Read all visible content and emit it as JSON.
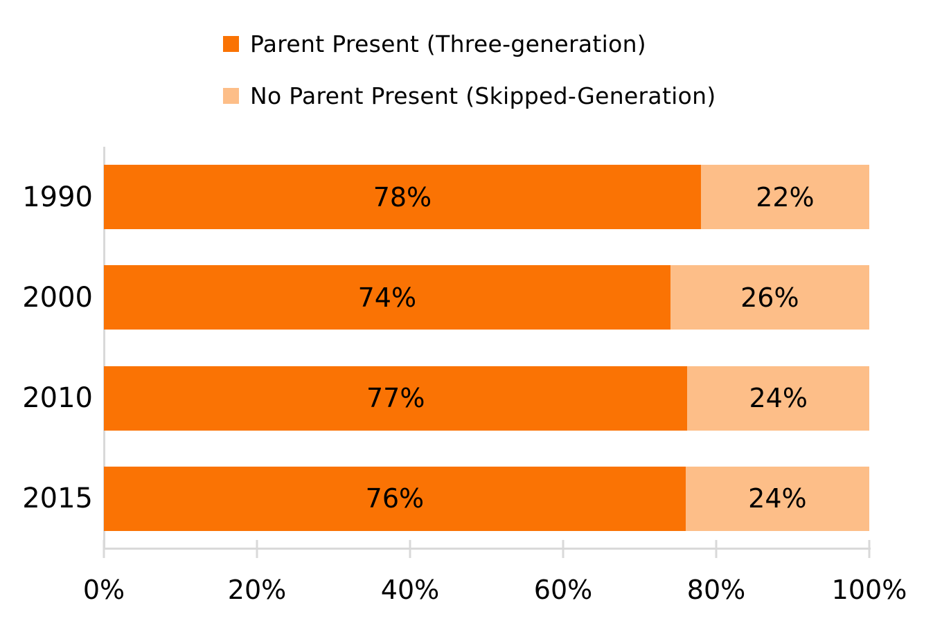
{
  "chart_data": {
    "type": "bar",
    "orientation": "horizontal",
    "stacked": true,
    "title": "",
    "xlabel": "",
    "ylabel": "",
    "xlim": [
      0,
      100
    ],
    "grid": false,
    "legend_position": "top",
    "axis_color": "#D9D9D9",
    "text_color": "#000000",
    "background_color": "#FFFFFF",
    "categories": [
      "1990",
      "2000",
      "2010",
      "2015"
    ],
    "x_ticks": [
      "0%",
      "20%",
      "40%",
      "60%",
      "80%",
      "100%"
    ],
    "series": [
      {
        "name": "Parent Present (Three-generation)",
        "color": "#FA7304",
        "values": [
          78,
          74,
          77,
          76
        ],
        "labels": [
          "78%",
          "74%",
          "77%",
          "76%"
        ]
      },
      {
        "name": "No Parent Present (Skipped-Generation)",
        "color": "#FDBE88",
        "values": [
          22,
          26,
          24,
          24
        ],
        "labels": [
          "22%",
          "26%",
          "24%",
          "24%"
        ]
      }
    ]
  }
}
